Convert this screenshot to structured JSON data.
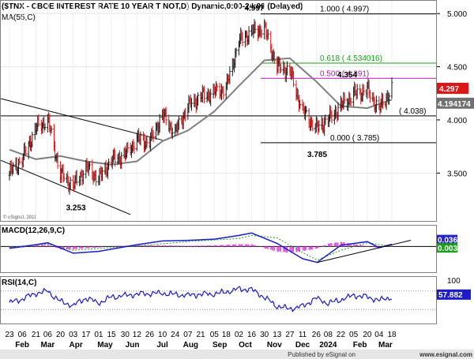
{
  "chart_data": [
    {
      "type": "candlestick",
      "title": "($TNX - CBOE INTEREST RATE 10 YEAR T NOT,D) Dynamic,0:00-24:00 (Delayed)",
      "overlay_label": "MA(55,C)",
      "watermark": "© eSignal, 2011",
      "ylim": [
        3.05,
        5.12
      ],
      "y_ticks": [
        "5.000",
        "4.500",
        "4.000",
        "3.500"
      ],
      "price_tag": {
        "label": "4.297",
        "value": 4.297,
        "color": "#e01515"
      },
      "ma_tag": {
        "label": "4.194174",
        "value": 4.194174,
        "color": "#707070"
      },
      "fib_levels": [
        {
          "label": "1.000 ( 4.997)",
          "value": 4.997,
          "color": "#000000"
        },
        {
          "label": "0.618 ( 4.534016)",
          "value": 4.534,
          "color": "#18a018"
        },
        {
          "label": "0.500 ( 4.391)",
          "value": 4.391,
          "color": "#b01ab0"
        },
        {
          "label": "0.000 ( 3.785)",
          "value": 3.785,
          "color": "#000000"
        }
      ],
      "horizontal_line": {
        "label": "( 4.038)",
        "value": 4.038
      },
      "trendlines": [
        {
          "from": [
            "2023-01-23",
            4.2
          ],
          "to": [
            "2023-06-26",
            3.81
          ]
        },
        {
          "from": [
            "2023-01-23",
            3.62
          ],
          "to": [
            "2023-05-22",
            3.11
          ]
        }
      ],
      "annotations": [
        {
          "text": "4.997",
          "date": "2023-10-19",
          "value": 4.997
        },
        {
          "text": "4.354",
          "date": "2024-01-29",
          "value": 4.354
        },
        {
          "text": "3.785",
          "date": "2023-12-27",
          "value": 3.785
        },
        {
          "text": "3.253",
          "date": "2023-04-06",
          "value": 3.253
        }
      ],
      "series": [
        {
          "name": "price",
          "x": [
            "2023-01-23",
            "2023-02-06",
            "2023-02-21",
            "2023-03-06",
            "2023-03-20",
            "2023-04-03",
            "2023-04-17",
            "2023-05-01",
            "2023-05-15",
            "2023-05-30",
            "2023-06-12",
            "2023-06-26",
            "2023-07-10",
            "2023-07-24",
            "2023-08-07",
            "2023-08-21",
            "2023-09-05",
            "2023-09-18",
            "2023-10-02",
            "2023-10-16",
            "2023-10-30",
            "2023-11-13",
            "2023-11-27",
            "2023-12-11",
            "2023-12-26",
            "2024-01-08",
            "2024-01-22",
            "2024-02-05",
            "2024-02-20",
            "2024-03-04",
            "2024-03-18"
          ],
          "values": [
            3.5,
            3.63,
            3.92,
            4.0,
            3.49,
            3.38,
            3.55,
            3.45,
            3.62,
            3.67,
            3.82,
            3.79,
            4.05,
            3.88,
            4.13,
            4.22,
            4.26,
            4.3,
            4.74,
            4.83,
            4.86,
            4.5,
            4.46,
            4.08,
            3.92,
            4.0,
            4.13,
            4.24,
            4.28,
            4.1,
            4.297
          ]
        },
        {
          "name": "MA(55,C)",
          "x": [
            "2023-01-23",
            "2023-02-21",
            "2023-03-20",
            "2023-04-17",
            "2023-05-15",
            "2023-06-12",
            "2023-07-10",
            "2023-08-07",
            "2023-09-05",
            "2023-10-02",
            "2023-10-30",
            "2023-11-27",
            "2023-12-26",
            "2024-01-22",
            "2024-02-20",
            "2024-03-18"
          ],
          "values": [
            3.72,
            3.63,
            3.66,
            3.61,
            3.58,
            3.61,
            3.8,
            3.9,
            4.08,
            4.32,
            4.56,
            4.58,
            4.36,
            4.13,
            4.11,
            4.19
          ]
        }
      ]
    },
    {
      "type": "line",
      "title": "MACD(12,26,9,C)",
      "ylim": [
        -0.42,
        0.34
      ],
      "tags": [
        {
          "label": "0.036",
          "value": 0.036,
          "color": "#2222cc"
        },
        {
          "label": "0.003",
          "value": 0.003,
          "color": "#18a018"
        }
      ],
      "trendline": {
        "from": [
          "2023-12-27",
          -0.26
        ],
        "to": [
          "2024-03-18",
          0.05
        ]
      },
      "series": [
        {
          "name": "MACD",
          "x": [
            "2023-01-23",
            "2023-02-21",
            "2023-03-06",
            "2023-04-03",
            "2023-05-01",
            "2023-06-12",
            "2023-07-10",
            "2023-08-07",
            "2023-09-05",
            "2023-10-02",
            "2023-10-16",
            "2023-11-13",
            "2023-12-11",
            "2023-12-27",
            "2024-01-22",
            "2024-02-20",
            "2024-03-04",
            "2024-03-18"
          ],
          "values": [
            -0.03,
            0.03,
            0.06,
            -0.11,
            -0.08,
            0.03,
            0.09,
            0.1,
            0.12,
            0.18,
            0.22,
            0.05,
            -0.2,
            -0.26,
            0.02,
            0.08,
            -0.02,
            0.036
          ]
        },
        {
          "name": "Signal",
          "x": [
            "2023-01-23",
            "2023-03-06",
            "2023-04-03",
            "2023-06-12",
            "2023-08-07",
            "2023-10-02",
            "2023-10-16",
            "2023-11-13",
            "2023-12-11",
            "2023-12-27",
            "2024-01-22",
            "2024-02-20",
            "2024-03-18"
          ],
          "values": [
            -0.01,
            0.04,
            -0.06,
            0.01,
            0.08,
            0.13,
            0.18,
            0.14,
            -0.1,
            -0.22,
            -0.06,
            0.06,
            0.003
          ]
        },
        {
          "name": "Histogram",
          "x": [
            "2023-01-23",
            "2023-02-06",
            "2023-02-21",
            "2023-03-06",
            "2023-03-20",
            "2023-04-03",
            "2023-04-17",
            "2023-05-01",
            "2023-05-15",
            "2023-06-12",
            "2023-07-10",
            "2023-08-07",
            "2023-09-05",
            "2023-10-02",
            "2023-10-16",
            "2023-10-30",
            "2023-11-13",
            "2023-11-27",
            "2023-12-11",
            "2023-12-26",
            "2024-01-08",
            "2024-01-22",
            "2024-02-05",
            "2024-02-20",
            "2024-03-04",
            "2024-03-18"
          ],
          "values": [
            -0.03,
            -0.02,
            0.02,
            0.03,
            -0.05,
            -0.05,
            -0.03,
            -0.02,
            0.01,
            0.02,
            0.02,
            0.01,
            0.02,
            0.04,
            0.04,
            -0.03,
            -0.09,
            -0.11,
            -0.08,
            -0.04,
            0.05,
            0.08,
            0.04,
            0.01,
            -0.03,
            0.03
          ]
        }
      ]
    },
    {
      "type": "line",
      "title": "RSI(14,C)",
      "ylim": [
        0,
        100
      ],
      "y_ticks": [
        "100"
      ],
      "tag": {
        "label": "57.882",
        "value": 57.882
      },
      "reference_lines": [
        70,
        30
      ],
      "series": [
        {
          "name": "RSI",
          "x": [
            "2023-01-23",
            "2023-02-06",
            "2023-02-21",
            "2023-03-06",
            "2023-03-20",
            "2023-04-03",
            "2023-04-17",
            "2023-05-01",
            "2023-05-15",
            "2023-06-12",
            "2023-07-10",
            "2023-08-07",
            "2023-09-05",
            "2023-10-02",
            "2023-10-16",
            "2023-10-30",
            "2023-11-13",
            "2023-11-27",
            "2023-12-11",
            "2023-12-26",
            "2024-01-08",
            "2024-01-22",
            "2024-02-05",
            "2024-02-20",
            "2024-03-04",
            "2024-03-18"
          ],
          "values": [
            45,
            52,
            64,
            70,
            48,
            38,
            54,
            44,
            58,
            62,
            66,
            60,
            64,
            74,
            72,
            56,
            38,
            32,
            36,
            54,
            44,
            52,
            60,
            56,
            50,
            57.882
          ]
        }
      ]
    },
    {
      "type": "axis",
      "ticks": [
        {
          "label": "23",
          "date": "2023-01-23"
        },
        {
          "label": "06",
          "date": "2023-02-06"
        },
        {
          "label": "21",
          "date": "2023-02-21"
        },
        {
          "label": "06",
          "date": "2023-03-06"
        },
        {
          "label": "20",
          "date": "2023-03-20"
        },
        {
          "label": "03",
          "date": "2023-04-03"
        },
        {
          "label": "17",
          "date": "2023-04-17"
        },
        {
          "label": "01",
          "date": "2023-05-01"
        },
        {
          "label": "15",
          "date": "2023-05-15"
        },
        {
          "label": "30",
          "date": "2023-05-30"
        },
        {
          "label": "12",
          "date": "2023-06-12"
        },
        {
          "label": "26",
          "date": "2023-06-26"
        },
        {
          "label": "10",
          "date": "2023-07-10"
        },
        {
          "label": "24",
          "date": "2023-07-24"
        },
        {
          "label": "07",
          "date": "2023-08-07"
        },
        {
          "label": "21",
          "date": "2023-08-21"
        },
        {
          "label": "05",
          "date": "2023-09-05"
        },
        {
          "label": "18",
          "date": "2023-09-18"
        },
        {
          "label": "02",
          "date": "2023-10-02"
        },
        {
          "label": "16",
          "date": "2023-10-16"
        },
        {
          "label": "30",
          "date": "2023-10-30"
        },
        {
          "label": "13",
          "date": "2023-11-13"
        },
        {
          "label": "27",
          "date": "2023-11-27"
        },
        {
          "label": "11",
          "date": "2023-12-11"
        },
        {
          "label": "26",
          "date": "2023-12-26"
        },
        {
          "label": "08",
          "date": "2024-01-08"
        },
        {
          "label": "22",
          "date": "2024-01-22"
        },
        {
          "label": "05",
          "date": "2024-02-05"
        },
        {
          "label": "20",
          "date": "2024-02-20"
        },
        {
          "label": "04",
          "date": "2024-03-04"
        },
        {
          "label": "18",
          "date": "2024-03-18"
        }
      ],
      "months": [
        {
          "label": "Feb",
          "date": "2023-02-06"
        },
        {
          "label": "Mar",
          "date": "2023-03-06"
        },
        {
          "label": "Apr",
          "date": "2023-04-06"
        },
        {
          "label": "May",
          "date": "2023-05-08"
        },
        {
          "label": "Jun",
          "date": "2023-06-07"
        },
        {
          "label": "Jul",
          "date": "2023-07-10"
        },
        {
          "label": "Aug",
          "date": "2023-08-10"
        },
        {
          "label": "Sep",
          "date": "2023-09-11"
        },
        {
          "label": "Oct",
          "date": "2023-10-09"
        },
        {
          "label": "Nov",
          "date": "2023-11-10"
        },
        {
          "label": "Dec",
          "date": "2023-12-11"
        },
        {
          "label": "2024",
          "date": "2024-01-08"
        },
        {
          "label": "Feb",
          "date": "2024-02-12"
        },
        {
          "label": "Mar",
          "date": "2024-03-11"
        }
      ],
      "footer": "Published by eSignal on",
      "brand": "www.esignal.com"
    }
  ]
}
